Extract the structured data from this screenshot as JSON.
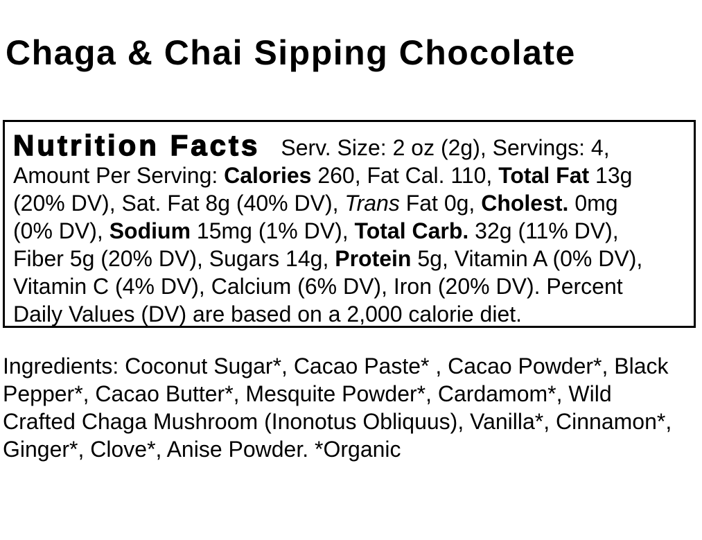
{
  "colors": {
    "background": "#ffffff",
    "text": "#000000",
    "box_border": "#000000"
  },
  "title": "Chaga & Chai Sipping Chocolate",
  "nutrition_facts": {
    "heading": "Nutrition Facts",
    "lines": [
      [
        {
          "t": "Nutrition Facts",
          "s": "heading"
        },
        {
          "t": "Serv. Size: 2 oz (2g), Servings: 4,",
          "s": "r"
        }
      ],
      [
        {
          "t": "Amount Per Serving: ",
          "s": "r"
        },
        {
          "t": "Calories",
          "s": "b"
        },
        {
          "t": " 260, Fat Cal. 110, ",
          "s": "r"
        },
        {
          "t": "Total Fat",
          "s": "b"
        },
        {
          "t": " 13g",
          "s": "r"
        }
      ],
      [
        {
          "t": "(20% DV), Sat. Fat 8g (40% DV), ",
          "s": "r"
        },
        {
          "t": "Trans",
          "s": "i"
        },
        {
          "t": " Fat 0g, ",
          "s": "r"
        },
        {
          "t": "Cholest.",
          "s": "b"
        },
        {
          "t": " 0mg",
          "s": "r"
        }
      ],
      [
        {
          "t": "(0% DV), ",
          "s": "r"
        },
        {
          "t": "Sodium",
          "s": "b"
        },
        {
          "t": " 15mg (1% DV), ",
          "s": "r"
        },
        {
          "t": "Total Carb.",
          "s": "b"
        },
        {
          "t": " 32g (11% DV),",
          "s": "r"
        }
      ],
      [
        {
          "t": "Fiber 5g (20% DV), Sugars 14g, ",
          "s": "r"
        },
        {
          "t": "Protein",
          "s": "b"
        },
        {
          "t": " 5g, Vitamin A (0% DV),",
          "s": "r"
        }
      ],
      [
        {
          "t": "Vitamin C (4% DV), Calcium (6% DV), Iron (20% DV). Percent",
          "s": "r"
        }
      ],
      [
        {
          "t": "Daily Values (DV) are based on a 2,000 calorie diet.",
          "s": "r"
        }
      ]
    ],
    "values": {
      "serving_size": "2 oz (2g)",
      "servings": "4",
      "calories": "260",
      "fat_calories": "110",
      "total_fat": "13g (20% DV)",
      "saturated_fat": "8g (40% DV)",
      "trans_fat": "0g",
      "cholesterol": "0mg (0% DV)",
      "sodium": "15mg (1% DV)",
      "total_carb": "32g (11% DV)",
      "fiber": "5g (20% DV)",
      "sugars": "14g",
      "protein": "5g",
      "vitamin_a": "0% DV",
      "vitamin_c": "4% DV",
      "calcium": "6% DV",
      "iron": "20% DV",
      "footnote": "Percent Daily Values (DV) are based on a 2,000 calorie diet."
    }
  },
  "ingredients": {
    "lines": [
      "Ingredients: Coconut Sugar*, Cacao Paste* , Cacao Powder*, Black",
      "Pepper*, Cacao Butter*, Mesquite Powder*, Cardamom*, Wild",
      "Crafted Chaga Mushroom (Inonotus Obliquus), Vanilla*, Cinnamon*,",
      "Ginger*, Clove*, Anise Powder. *Organic"
    ],
    "full_text": "Ingredients: Coconut Sugar*, Cacao Paste* , Cacao Powder*, Black Pepper*, Cacao Butter*, Mesquite Powder*, Cardamom*, Wild Crafted Chaga Mushroom (Inonotus Obliquus), Vanilla*, Cinnamon*, Ginger*, Clove*, Anise Powder. *Organic"
  }
}
